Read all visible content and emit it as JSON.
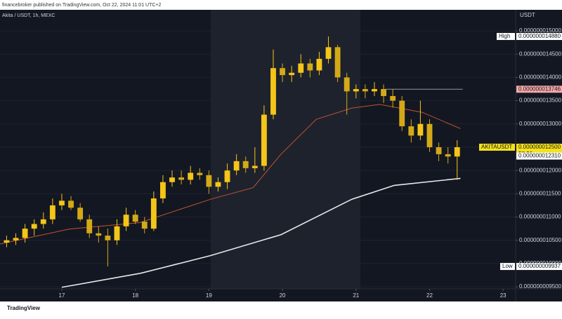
{
  "header": {
    "publisher": "financebroker published on TradingView.com, Oct 22, 2024 11:01 UTC+2",
    "logo": "TradingView"
  },
  "chart_data": {
    "type": "candlestick",
    "symbol": "Akita / USDT, 1h, MEXC",
    "axis_title": "USDT",
    "up_color": "#f5c518",
    "down_color": "#d4a917",
    "x": [
      16.25,
      16.375,
      16.5,
      16.625,
      16.75,
      16.875,
      17.0,
      17.125,
      17.25,
      17.375,
      17.5,
      17.625,
      17.75,
      17.875,
      18.0,
      18.125,
      18.25,
      18.375,
      18.5,
      18.625,
      18.75,
      18.875,
      19.0,
      19.125,
      19.25,
      19.375,
      19.5,
      19.625,
      19.75,
      19.875,
      20.0,
      20.125,
      20.25,
      20.375,
      20.5,
      20.625,
      20.75,
      20.875,
      21.0,
      21.125,
      21.25,
      21.375,
      21.5,
      21.625,
      21.75,
      21.875,
      22.0,
      22.125,
      22.25,
      22.375
    ],
    "open": [
      1.045e-08,
      1.05e-08,
      1.055e-08,
      1.075e-08,
      1.085e-08,
      1.095e-08,
      1.125e-08,
      1.135e-08,
      1.12e-08,
      1.095e-08,
      1.065e-08,
      1.06e-08,
      1.05e-08,
      1.08e-08,
      1.105e-08,
      1.09e-08,
      1.075e-08,
      1.14e-08,
      1.175e-08,
      1.185e-08,
      1.18e-08,
      1.195e-08,
      1.19e-08,
      1.165e-08,
      1.175e-08,
      1.2e-08,
      1.22e-08,
      1.205e-08,
      1.21e-08,
      1.32e-08,
      1.42e-08,
      1.405e-08,
      1.41e-08,
      1.43e-08,
      1.415e-08,
      1.44e-08,
      1.465e-08,
      1.4e-08,
      1.37e-08,
      1.375e-08,
      1.37e-08,
      1.375e-08,
      1.36e-08,
      1.35e-08,
      1.295e-08,
      1.275e-08,
      1.3e-08,
      1.25e-08,
      1.235e-08,
      1.23e-08
    ],
    "high": [
      1.06e-08,
      1.065e-08,
      1.085e-08,
      1.095e-08,
      1.11e-08,
      1.14e-08,
      1.15e-08,
      1.145e-08,
      1.13e-08,
      1.105e-08,
      1.08e-08,
      1.075e-08,
      1.095e-08,
      1.12e-08,
      1.115e-08,
      1.1e-08,
      1.155e-08,
      1.19e-08,
      1.2e-08,
      1.2e-08,
      1.21e-08,
      1.205e-08,
      1.2e-08,
      1.185e-08,
      1.215e-08,
      1.235e-08,
      1.23e-08,
      1.25e-08,
      1.34e-08,
      1.46e-08,
      1.43e-08,
      1.425e-08,
      1.45e-08,
      1.44e-08,
      1.455e-08,
      1.488e-08,
      1.47e-08,
      1.41e-08,
      1.385e-08,
      1.385e-08,
      1.39e-08,
      1.385e-08,
      1.375e-08,
      1.36e-08,
      1.31e-08,
      1.35e-08,
      1.31e-08,
      1.26e-08,
      1.25e-08,
      1.265e-08
    ],
    "low": [
      1.035e-08,
      1.04e-08,
      1.045e-08,
      1.06e-08,
      1.075e-08,
      1.085e-08,
      1.115e-08,
      1.115e-08,
      1.09e-08,
      1.055e-08,
      1.045e-08,
      9.937e-09,
      1.04e-08,
      1.07e-08,
      1.085e-08,
      1.065e-08,
      1.07e-08,
      1.13e-08,
      1.165e-08,
      1.17e-08,
      1.17e-08,
      1.18e-08,
      1.15e-08,
      1.155e-08,
      1.16e-08,
      1.19e-08,
      1.195e-08,
      1.195e-08,
      1.2e-08,
      1.31e-08,
      1.39e-08,
      1.39e-08,
      1.4e-08,
      1.4e-08,
      1.405e-08,
      1.43e-08,
      1.39e-08,
      1.32e-08,
      1.355e-08,
      1.355e-08,
      1.36e-08,
      1.345e-08,
      1.335e-08,
      1.285e-08,
      1.26e-08,
      1.265e-08,
      1.24e-08,
      1.22e-08,
      1.215e-08,
      1.18e-08
    ],
    "close": [
      1.05e-08,
      1.055e-08,
      1.075e-08,
      1.085e-08,
      1.095e-08,
      1.125e-08,
      1.135e-08,
      1.12e-08,
      1.095e-08,
      1.065e-08,
      1.06e-08,
      1.05e-08,
      1.08e-08,
      1.105e-08,
      1.09e-08,
      1.075e-08,
      1.14e-08,
      1.175e-08,
      1.185e-08,
      1.18e-08,
      1.195e-08,
      1.19e-08,
      1.165e-08,
      1.175e-08,
      1.2e-08,
      1.22e-08,
      1.205e-08,
      1.21e-08,
      1.32e-08,
      1.42e-08,
      1.405e-08,
      1.41e-08,
      1.43e-08,
      1.415e-08,
      1.44e-08,
      1.465e-08,
      1.4e-08,
      1.37e-08,
      1.375e-08,
      1.37e-08,
      1.375e-08,
      1.36e-08,
      1.35e-08,
      1.295e-08,
      1.275e-08,
      1.3e-08,
      1.25e-08,
      1.235e-08,
      1.23e-08,
      1.25e-08
    ],
    "lines": [
      {
        "color": "#c0552e",
        "x": [
          16.16,
          17.1,
          18.06,
          19.02,
          19.6,
          19.98,
          20.46,
          20.94,
          21.32,
          21.9,
          22.42
        ],
        "values": [
          1.042e-08,
          1.074e-08,
          1.088e-08,
          1.138e-08,
          1.163e-08,
          1.235e-08,
          1.31e-08,
          1.334e-08,
          1.342e-08,
          1.325e-08,
          1.29e-08
        ]
      },
      {
        "color": "#e8e8e8",
        "x": [
          17.0,
          18.07,
          19.02,
          19.98,
          20.94,
          21.52,
          22.42
        ],
        "values": [
          9.49e-09,
          9.79e-09,
          1.017e-08,
          1.062e-08,
          1.138e-08,
          1.168e-08,
          1.183e-08
        ]
      }
    ],
    "level_line": {
      "value": 1.3746e-08,
      "from": 21.4,
      "to": 22.45
    },
    "price_labels": [
      {
        "label": "High",
        "value": 1.488e-08,
        "value_label": "0.000000014880",
        "color": "#ffffff"
      },
      {
        "value": 1.3746e-08,
        "value_label": "0.000000013746",
        "color": "#f7a9a8"
      },
      {
        "label": "AKITAUSDT",
        "value": 1.25e-08,
        "value_label": "0.000000012500",
        "extra": "58:36",
        "color": "#f5e11b"
      },
      {
        "value": 1.231e-08,
        "value_label": "0.000000012310",
        "color": "#ffffff"
      },
      {
        "label": "Low",
        "value": 9.937e-09,
        "value_label": "0.000000009937",
        "color": "#ffffff"
      }
    ],
    "xlim": [
      16.16,
      23.17
    ],
    "xticks": [
      17,
      18,
      19,
      20,
      21,
      22,
      23
    ],
    "ylim": [
      9.456e-09,
      1.5453e-08
    ],
    "yticks": [
      {
        "value": 9.5e-09,
        "label": "0.000000009500"
      },
      {
        "value": 1e-08,
        "label": "0.000000010000"
      },
      {
        "value": 1.05e-08,
        "label": "0.000000010500"
      },
      {
        "value": 1.1e-08,
        "label": "0.000000011000"
      },
      {
        "value": 1.15e-08,
        "label": "0.000000011500"
      },
      {
        "value": 1.2e-08,
        "label": "0.000000012000"
      },
      {
        "value": 1.25e-08,
        "label": "0.000000012500"
      },
      {
        "value": 1.3e-08,
        "label": "0.000000013000"
      },
      {
        "value": 1.35e-08,
        "label": "0.000000013500"
      },
      {
        "value": 1.4e-08,
        "label": "0.000000014000"
      },
      {
        "value": 1.45e-08,
        "label": "0.000000014500"
      },
      {
        "value": 1.5e-08,
        "label": "0.000000015000"
      }
    ]
  }
}
